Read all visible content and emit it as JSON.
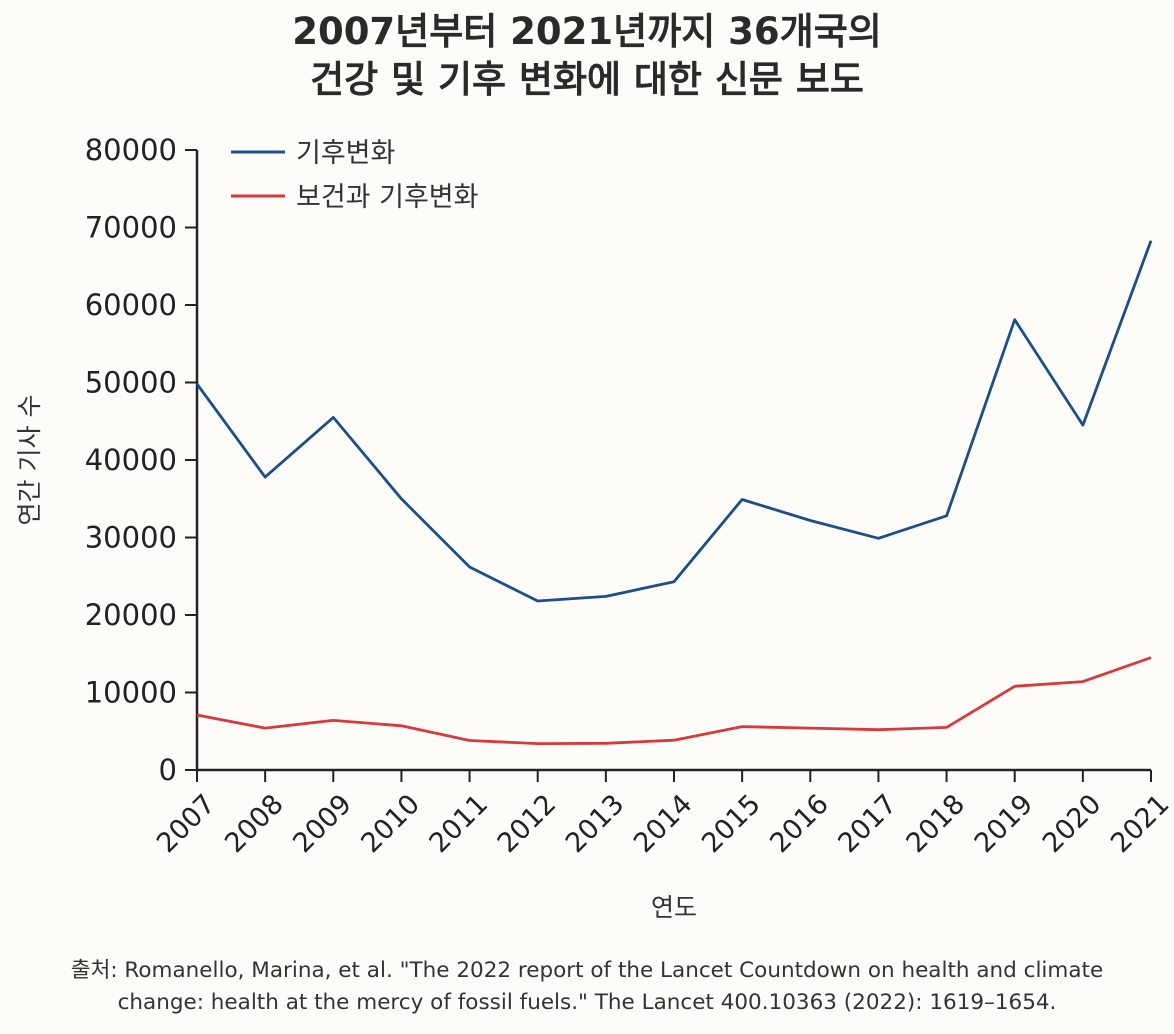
{
  "title": {
    "line1": "2007년부터 2021년까지 36개국의",
    "line2": "건강 및 기후 변화에 대한 신문 보도"
  },
  "source": {
    "line1": "출처: Romanello, Marina, et al. \"The 2022 report of the Lancet Countdown on health and climate",
    "line2": "change: health at the mercy of fossil fuels.\" The Lancet 400.10363 (2022): 1619–1654."
  },
  "colors": {
    "climate": "#1a4f8a",
    "health_climate": "#d63a3a",
    "axis": "#222222"
  },
  "chart_data": {
    "type": "line",
    "title": "2007년부터 2021년까지 36개국의 건강 및 기후 변화에 대한 신문 보도",
    "xlabel": "연도",
    "ylabel": "연간 기사 수",
    "ylim": [
      0,
      80000
    ],
    "yticks": [
      "0",
      "10000",
      "20000",
      "30000",
      "40000",
      "50000",
      "60000",
      "70000",
      "80000"
    ],
    "x": [
      "2007",
      "2008",
      "2009",
      "2010",
      "2011",
      "2012",
      "2013",
      "2014",
      "2015",
      "2016",
      "2017",
      "2018",
      "2019",
      "2020",
      "2021"
    ],
    "legend_position": "top-left",
    "grid": false,
    "series": [
      {
        "name": "기후변화",
        "values": [
          49800,
          37800,
          45500,
          35000,
          26200,
          21800,
          22400,
          24300,
          34900,
          32200,
          29900,
          32800,
          58100,
          44500,
          68300
        ]
      },
      {
        "name": "보건과 기후변화",
        "values": [
          7100,
          5400,
          6400,
          5700,
          3800,
          3400,
          3450,
          3850,
          5600,
          5400,
          5200,
          5500,
          10800,
          11400,
          14500
        ]
      }
    ]
  }
}
